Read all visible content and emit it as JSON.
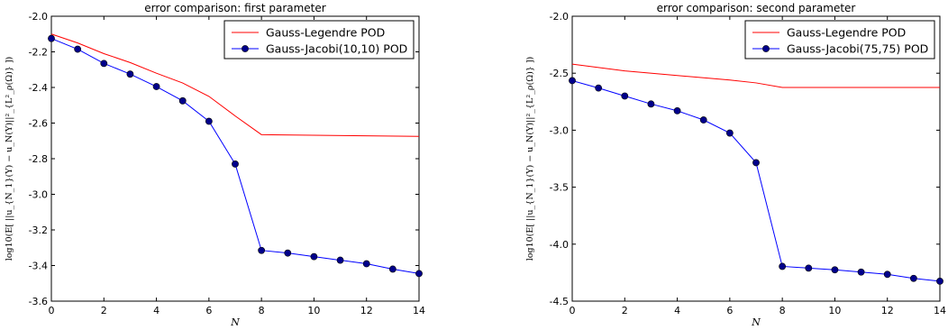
{
  "chart_data": [
    {
      "type": "line",
      "title": "error comparison: first parameter",
      "xlabel": "N",
      "ylabel": "log10(E[ ||u_{N_1}(Y) − u_N(Y)||²_{L²_ρ(Ω)} ])",
      "xlim": [
        0,
        14
      ],
      "ylim": [
        -3.6,
        -2.0
      ],
      "xticks": [
        "0",
        "2",
        "4",
        "6",
        "8",
        "10",
        "12",
        "14"
      ],
      "yticks": [
        "-2.0",
        "-2.2",
        "-2.4",
        "-2.6",
        "-2.8",
        "-3.0",
        "-3.2",
        "-3.4",
        "-3.6"
      ],
      "legend_position": "top-right",
      "series": [
        {
          "name": "Gauss-Legendre POD",
          "color": "#ff0000",
          "marker": false,
          "x": [
            0,
            1,
            2,
            3,
            4,
            5,
            6,
            7,
            8,
            14
          ],
          "y": [
            -2.1,
            -2.15,
            -2.21,
            -2.26,
            -2.32,
            -2.375,
            -2.45,
            -2.56,
            -2.665,
            -2.675
          ]
        },
        {
          "name": "Gauss-Jacobi(10,10) POD",
          "color": "#0000ff",
          "marker": true,
          "x": [
            0,
            1,
            2,
            3,
            4,
            5,
            6,
            7,
            8,
            9,
            10,
            11,
            12,
            13,
            14
          ],
          "y": [
            -2.125,
            -2.185,
            -2.265,
            -2.325,
            -2.395,
            -2.475,
            -2.59,
            -2.83,
            -3.315,
            -3.33,
            -3.35,
            -3.37,
            -3.39,
            -3.42,
            -3.445
          ]
        }
      ]
    },
    {
      "type": "line",
      "title": "error comparison: second parameter",
      "xlabel": "N",
      "ylabel": "log10(E[ ||u_{N_1}(Y) − u_N(Y)||²_{L²_ρ(Ω)} ])",
      "xlim": [
        0,
        14
      ],
      "ylim": [
        -4.5,
        -2.0
      ],
      "xticks": [
        "0",
        "2",
        "4",
        "6",
        "8",
        "10",
        "12",
        "14"
      ],
      "yticks": [
        "-2.0",
        "-2.5",
        "-3.0",
        "-3.5",
        "-4.0",
        "-4.5"
      ],
      "legend_position": "top-right",
      "series": [
        {
          "name": "Gauss-Legendre POD",
          "color": "#ff0000",
          "marker": false,
          "x": [
            0,
            2,
            4,
            6,
            7,
            8,
            14
          ],
          "y": [
            -2.42,
            -2.48,
            -2.52,
            -2.56,
            -2.585,
            -2.625,
            -2.625
          ]
        },
        {
          "name": "Gauss-Jacobi(75,75) POD",
          "color": "#0000ff",
          "marker": true,
          "x": [
            0,
            1,
            2,
            3,
            4,
            5,
            6,
            7,
            8,
            9,
            10,
            11,
            12,
            13,
            14
          ],
          "y": [
            -2.565,
            -2.63,
            -2.7,
            -2.77,
            -2.83,
            -2.91,
            -3.025,
            -3.285,
            -4.195,
            -4.21,
            -4.225,
            -4.245,
            -4.265,
            -4.3,
            -4.325
          ]
        }
      ]
    }
  ]
}
